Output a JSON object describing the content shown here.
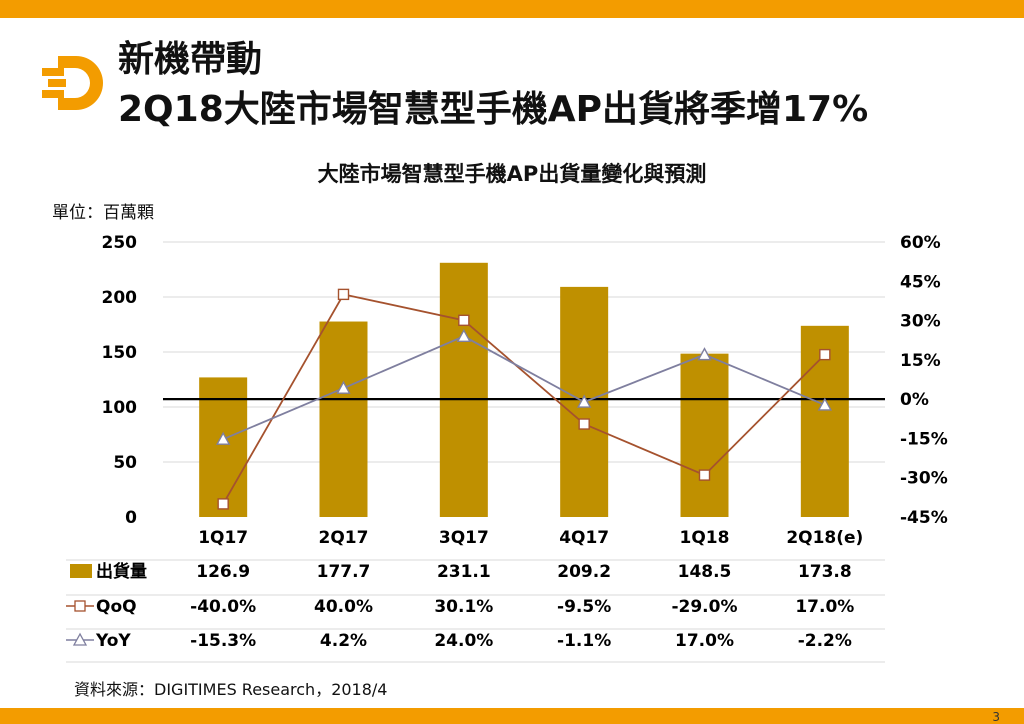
{
  "slide": {
    "title_line1": "新機帶動",
    "title_line2": "2Q18大陸市場智慧型手機AP出貨將季增17%",
    "page_number": "3",
    "logo_icon": "digitimes-logo-icon",
    "brand_color": "#f39c00",
    "source": "資料來源：DIGITIMES Research，2018/4"
  },
  "chart_data": {
    "type": "bar",
    "title": "大陸市場智慧型手機AP出貨量變化與預測",
    "unit_label": "單位：百萬顆",
    "categories": [
      "1Q17",
      "2Q17",
      "3Q17",
      "4Q17",
      "1Q18",
      "2Q18(e)"
    ],
    "y_left": {
      "ylim": [
        0,
        250
      ],
      "ticks": [
        0,
        50,
        100,
        150,
        200,
        250
      ]
    },
    "y_right": {
      "ylim": [
        -45,
        60
      ],
      "ticks": [
        -45,
        -30,
        -15,
        0,
        15,
        30,
        45,
        60
      ],
      "tick_labels": [
        "-45%",
        "-30%",
        "-15%",
        "0%",
        "15%",
        "30%",
        "45%",
        "60%"
      ]
    },
    "series": [
      {
        "name": "出貨量",
        "type": "bar",
        "axis": "left",
        "color": "#bf9000",
        "values": [
          126.9,
          177.7,
          231.1,
          209.2,
          148.5,
          173.8
        ],
        "labels": [
          "126.9",
          "177.7",
          "231.1",
          "209.2",
          "148.5",
          "173.8"
        ]
      },
      {
        "name": "QoQ",
        "type": "line",
        "axis": "right",
        "color": "#a5522e",
        "marker": "square",
        "values": [
          -40.0,
          40.0,
          30.1,
          -9.5,
          -29.0,
          17.0
        ],
        "labels": [
          "-40.0%",
          "40.0%",
          "30.1%",
          "-9.5%",
          "-29.0%",
          "17.0%"
        ]
      },
      {
        "name": "YoY",
        "type": "line",
        "axis": "right",
        "color": "#7f7f9f",
        "marker": "triangle",
        "values": [
          -15.3,
          4.2,
          24.0,
          -1.1,
          17.0,
          -2.2
        ],
        "labels": [
          "-15.3%",
          "4.2%",
          "24.0%",
          "-1.1%",
          "17.0%",
          "-2.2%"
        ]
      }
    ],
    "grid": true,
    "legend": "table-below"
  }
}
